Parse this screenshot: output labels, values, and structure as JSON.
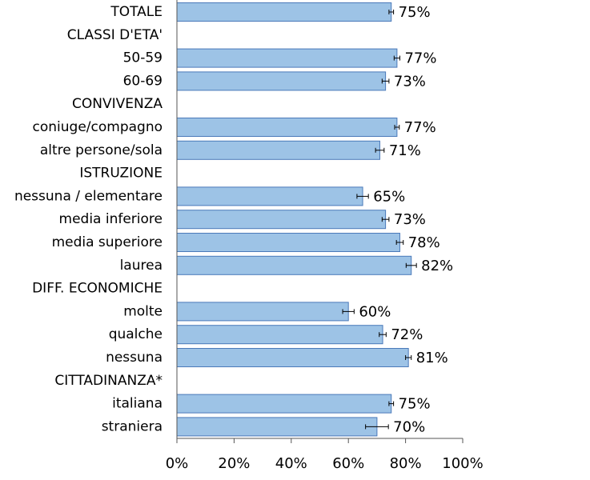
{
  "chart_data": {
    "type": "bar",
    "orientation": "horizontal",
    "title": "",
    "xlabel": "",
    "ylabel": "",
    "xlim": [
      0,
      100
    ],
    "x_ticks": [
      "0%",
      "20%",
      "40%",
      "60%",
      "80%",
      "100%"
    ],
    "grid": false,
    "legend": "none",
    "bar_color": "#9dc3e6",
    "rows": [
      {
        "label": "TOTALE",
        "header": false,
        "value": 75,
        "err": 0.8,
        "value_label": "75%"
      },
      {
        "label": "CLASSI D'ETA'",
        "header": true
      },
      {
        "label": "50-59",
        "header": false,
        "value": 77,
        "err": 1.0,
        "value_label": "77%"
      },
      {
        "label": "60-69",
        "header": false,
        "value": 73,
        "err": 1.2,
        "value_label": "73%"
      },
      {
        "label": "CONVIVENZA",
        "header": true
      },
      {
        "label": "coniuge/compagno",
        "header": false,
        "value": 77,
        "err": 0.8,
        "value_label": "77%"
      },
      {
        "label": "altre persone/sola",
        "header": false,
        "value": 71,
        "err": 1.5,
        "value_label": "71%"
      },
      {
        "label": "ISTRUZIONE",
        "header": true
      },
      {
        "label": "nessuna / elementare",
        "header": false,
        "value": 65,
        "err": 2.0,
        "value_label": "65%"
      },
      {
        "label": "media inferiore",
        "header": false,
        "value": 73,
        "err": 1.2,
        "value_label": "73%"
      },
      {
        "label": "media superiore",
        "header": false,
        "value": 78,
        "err": 1.2,
        "value_label": "78%"
      },
      {
        "label": "laurea",
        "header": false,
        "value": 82,
        "err": 1.8,
        "value_label": "82%"
      },
      {
        "label": "DIFF. ECONOMICHE",
        "header": true
      },
      {
        "label": "molte",
        "header": false,
        "value": 60,
        "err": 2.0,
        "value_label": "60%"
      },
      {
        "label": "qualche",
        "header": false,
        "value": 72,
        "err": 1.2,
        "value_label": "72%"
      },
      {
        "label": "nessuna",
        "header": false,
        "value": 81,
        "err": 1.0,
        "value_label": "81%"
      },
      {
        "label": "CITTADINANZA*",
        "header": true
      },
      {
        "label": "italiana",
        "header": false,
        "value": 75,
        "err": 0.8,
        "value_label": "75%"
      },
      {
        "label": "straniera",
        "header": false,
        "value": 70,
        "err": 4.0,
        "value_label": "70%"
      }
    ]
  }
}
